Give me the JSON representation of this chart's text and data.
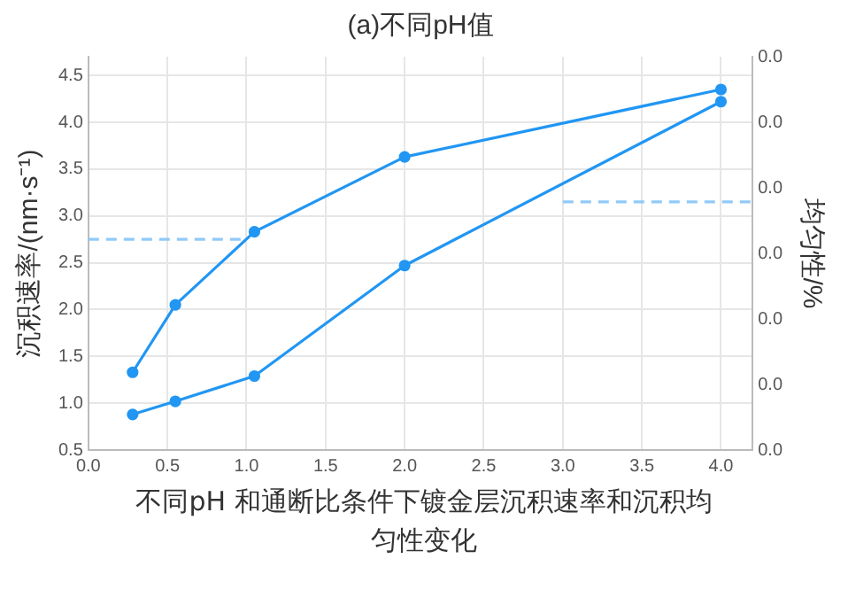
{
  "chart_data": {
    "type": "line",
    "title": "(a)不同pH值",
    "ylabel": "沉积速率/(nm·s⁻¹)",
    "y2label": "均匀性/%",
    "annotations": [
      "不同pH 和通断比条件下镀金层沉积速率和沉积均匀性变化"
    ],
    "xlim": [
      0,
      4.2
    ],
    "xticks": [
      {
        "value": 0,
        "label": "0.0"
      },
      {
        "value": 0.5,
        "label": "0.5"
      },
      {
        "value": 1,
        "label": "1.0"
      },
      {
        "value": 1.5,
        "label": "1.5"
      },
      {
        "value": 2,
        "label": "2.0"
      },
      {
        "value": 2.5,
        "label": "2.5"
      },
      {
        "value": 3,
        "label": "3.0"
      },
      {
        "value": 3.5,
        "label": "3.5"
      },
      {
        "value": 4,
        "label": "4.0"
      }
    ],
    "ylim": [
      0.5,
      4.7
    ],
    "yticks": [
      0.5,
      {
        "value": 1,
        "label": "1.0"
      },
      1.5,
      {
        "value": 2,
        "label": "2.0"
      },
      2.5,
      {
        "value": 3,
        "label": "3.0"
      },
      3.5,
      {
        "value": 4,
        "label": "4.0"
      },
      4.5
    ],
    "y2lim": [
      0,
      0.03
    ],
    "y2ticks": [
      {
        "value": 0,
        "label": "0.0"
      },
      {
        "value": 0.005,
        "label": "0.0"
      },
      {
        "value": 0.01,
        "label": "0.0"
      },
      {
        "value": 0.015,
        "label": "0.0"
      },
      {
        "value": 0.02,
        "label": "0.0"
      },
      {
        "value": 0.025,
        "label": "0.0"
      },
      {
        "value": 0.03,
        "label": "0.0"
      }
    ],
    "grid": true,
    "marker": "circle",
    "line_style": "solid",
    "series": [
      {
        "color": "#2196f3",
        "x": [
          0.28,
          0.55,
          1.05,
          2.0,
          4.0
        ],
        "values": [
          1.33,
          2.05,
          2.83,
          3.63,
          4.35
        ]
      },
      {
        "color": "#2196f3",
        "x": [
          0.28,
          0.55,
          1.05,
          2.0,
          4.0
        ],
        "values": [
          0.88,
          1.02,
          1.29,
          2.47,
          4.22
        ]
      },
      {
        "color": "#90caf9",
        "x": [
          0,
          1.0
        ],
        "values": [
          2.75,
          2.75
        ],
        "marker": "none",
        "line_style": "dashed"
      },
      {
        "color": "#90caf9",
        "x": [
          3.0,
          4.2
        ],
        "values": [
          3.15,
          3.15
        ],
        "marker": "none",
        "line_style": "dashed"
      }
    ]
  }
}
